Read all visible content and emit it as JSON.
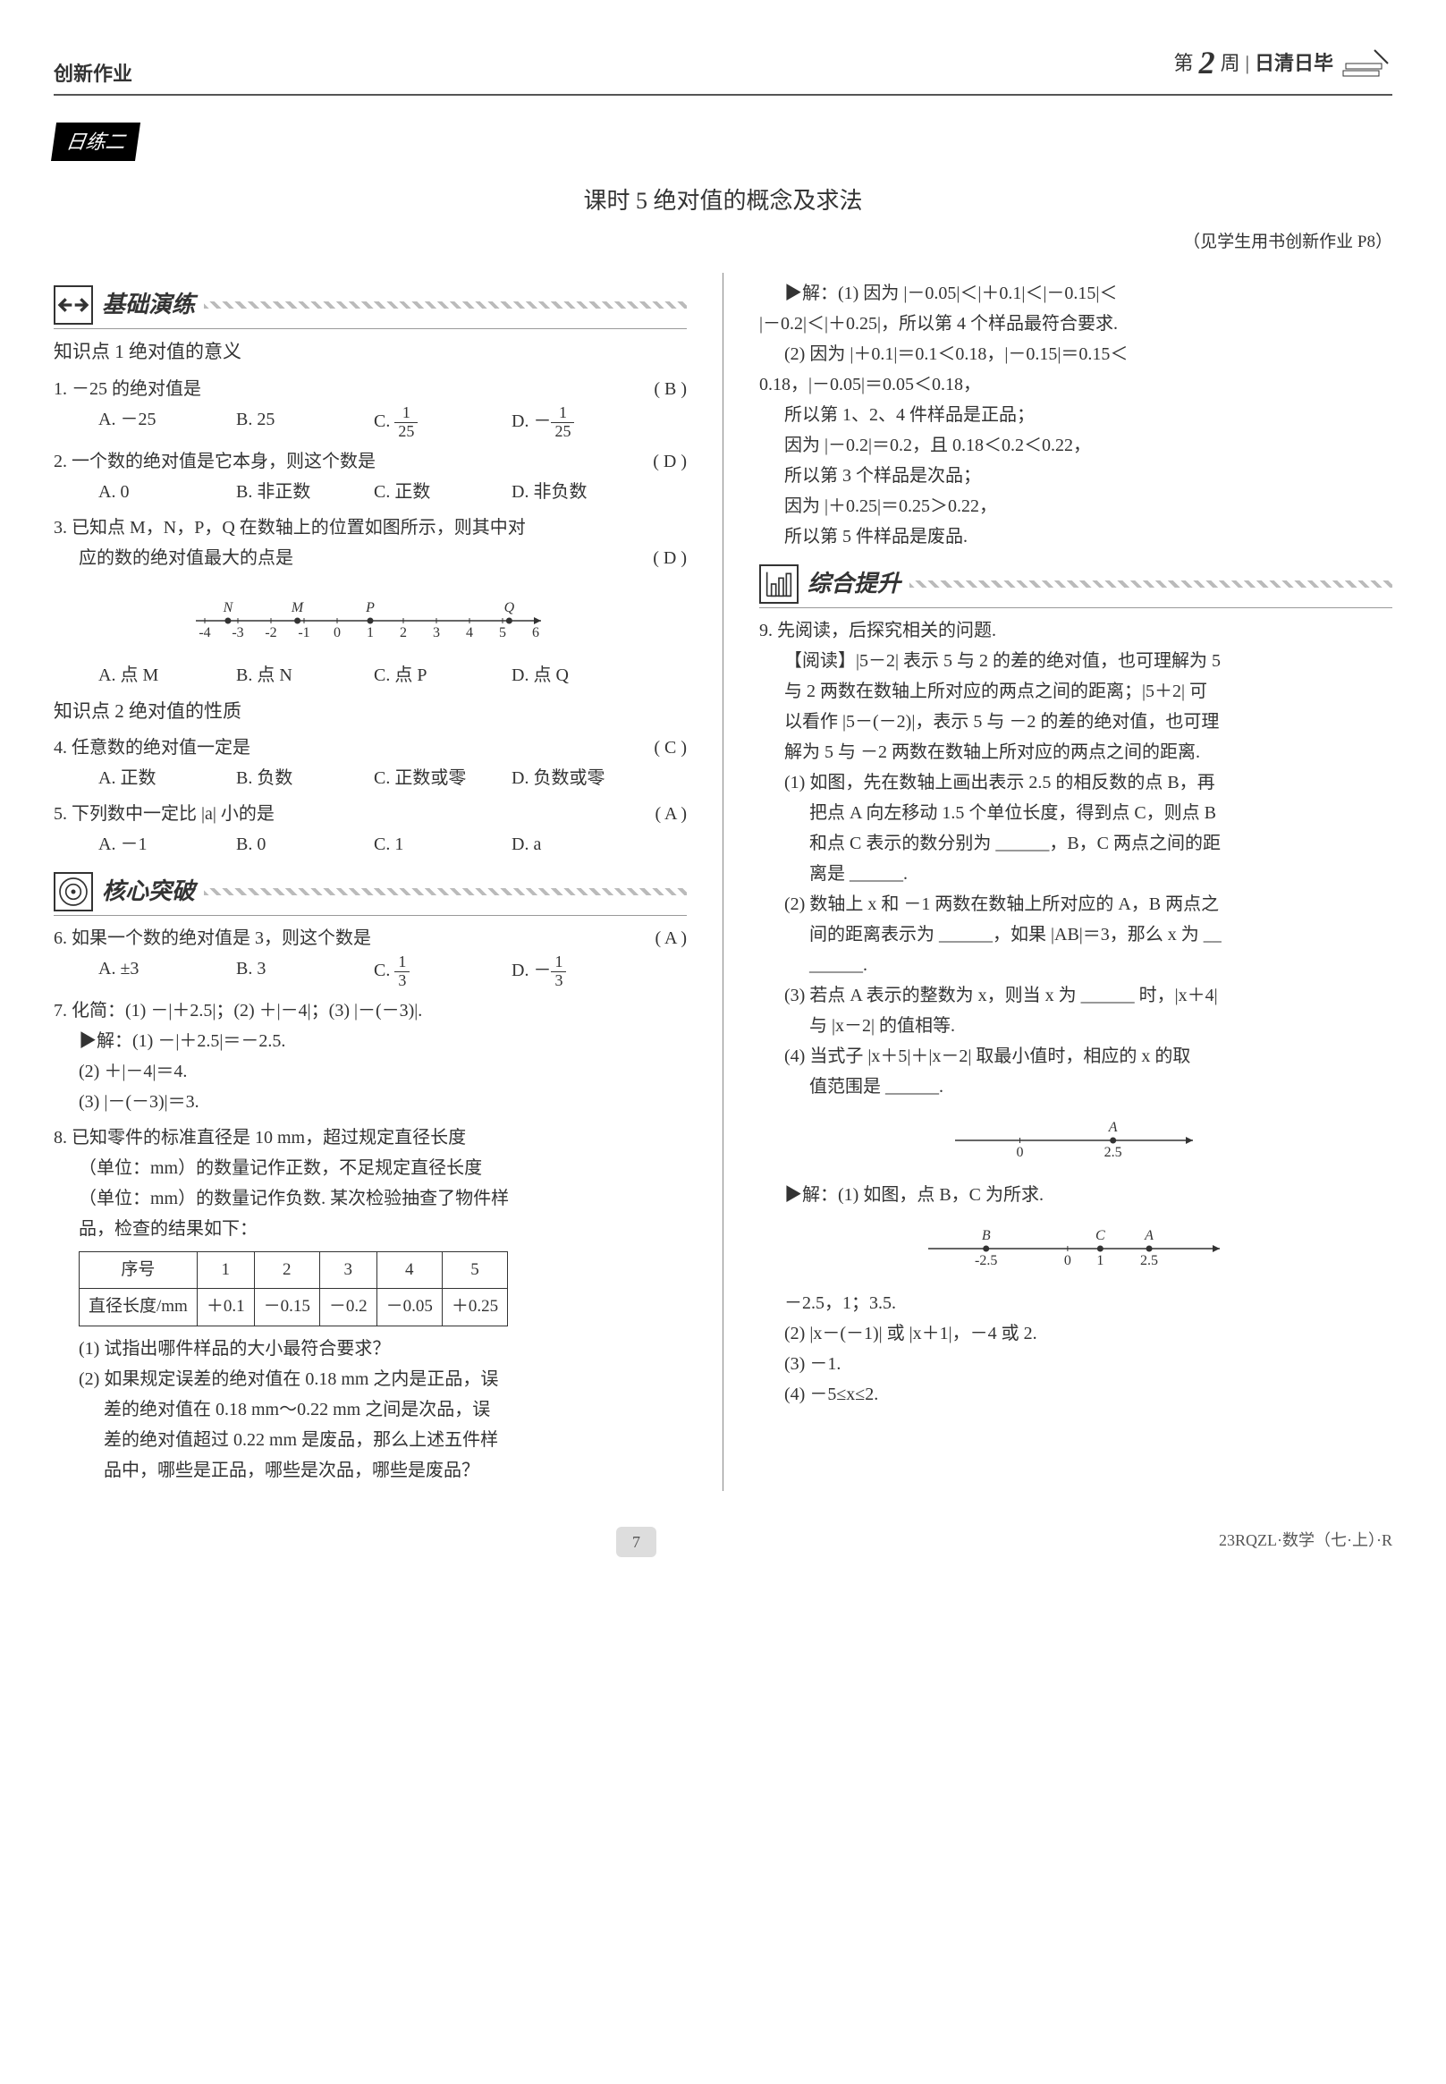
{
  "header": {
    "left": "创新作业",
    "week_prefix": "第",
    "week_num": "2",
    "week_suffix": "周",
    "divider": "|",
    "brand": "日清日毕"
  },
  "badge": "日练二",
  "lesson_title": "课时 5  绝对值的概念及求法",
  "title_note": "（见学生用书创新作业 P8）",
  "sections": {
    "basic": {
      "title": "基础演练"
    },
    "core": {
      "title": "核心突破"
    },
    "comp": {
      "title": "综合提升"
    }
  },
  "kpt1": "知识点 1  绝对值的意义",
  "q1": {
    "stem": "1. －25 的绝对值是",
    "ans": "( B )",
    "opt_a": "A. －25",
    "opt_b": "B. 25",
    "opt_c_pre": "C. ",
    "opt_c_num": "1",
    "opt_c_den": "25",
    "opt_d_pre": "D. －",
    "opt_d_num": "1",
    "opt_d_den": "25"
  },
  "q2": {
    "stem": "2. 一个数的绝对值是它本身，则这个数是",
    "ans": "( D )",
    "opt_a": "A. 0",
    "opt_b": "B. 非正数",
    "opt_c": "C. 正数",
    "opt_d": "D. 非负数"
  },
  "q3": {
    "stem1": "3. 已知点 M，N，P，Q 在数轴上的位置如图所示，则其中对",
    "stem2": "应的数的绝对值最大的点是",
    "ans": "( D )",
    "opt_a": "A. 点 M",
    "opt_b": "B. 点 N",
    "opt_c": "C. 点 P",
    "opt_d": "D. 点 Q",
    "numline": {
      "min": -4,
      "max": 6,
      "ticks": [
        "-4",
        "-3",
        "-2",
        "-1",
        "0",
        "1",
        "2",
        "3",
        "4",
        "5",
        "6"
      ],
      "points": [
        {
          "label": "N",
          "x": -3.3
        },
        {
          "label": "M",
          "x": -1.2
        },
        {
          "label": "P",
          "x": 1
        },
        {
          "label": "Q",
          "x": 5.2
        }
      ]
    }
  },
  "kpt2": "知识点 2  绝对值的性质",
  "q4": {
    "stem": "4. 任意数的绝对值一定是",
    "ans": "( C )",
    "opt_a": "A. 正数",
    "opt_b": "B. 负数",
    "opt_c": "C. 正数或零",
    "opt_d": "D. 负数或零"
  },
  "q5": {
    "stem": "5. 下列数中一定比 |a| 小的是",
    "ans": "( A )",
    "opt_a": "A. －1",
    "opt_b": "B. 0",
    "opt_c": "C. 1",
    "opt_d": "D. a"
  },
  "q6": {
    "stem": "6. 如果一个数的绝对值是 3，则这个数是",
    "ans": "( A )",
    "opt_a": "A. ±3",
    "opt_b": "B. 3",
    "opt_c_pre": "C. ",
    "opt_c_num": "1",
    "opt_c_den": "3",
    "opt_d_pre": "D. －",
    "opt_d_num": "1",
    "opt_d_den": "3"
  },
  "q7": {
    "stem": "7. 化简：(1) －|＋2.5|；(2) ＋|－4|；(3) |－(－3)|.",
    "sol_label": "▶解：",
    "s1": "(1) －|＋2.5|＝－2.5.",
    "s2": "(2) ＋|－4|＝4.",
    "s3": "(3) |－(－3)|＝3."
  },
  "q8": {
    "l1": "8. 已知零件的标准直径是 10 mm，超过规定直径长度",
    "l2": "（单位：mm）的数量记作正数，不足规定直径长度",
    "l3": "（单位：mm）的数量记作负数. 某次检验抽查了物件样",
    "l4": "品，检查的结果如下：",
    "table": {
      "r1": [
        "序号",
        "1",
        "2",
        "3",
        "4",
        "5"
      ],
      "r2": [
        "直径长度/mm",
        "＋0.1",
        "－0.15",
        "－0.2",
        "－0.05",
        "＋0.25"
      ]
    },
    "sub1": "(1) 试指出哪件样品的大小最符合要求？",
    "sub2a": "(2) 如果规定误差的绝对值在 0.18 mm 之内是正品，误",
    "sub2b": "差的绝对值在 0.18 mm～0.22 mm 之间是次品，误",
    "sub2c": "差的绝对值超过 0.22 mm 是废品，那么上述五件样",
    "sub2d": "品中，哪些是正品，哪些是次品，哪些是废品？"
  },
  "q8sol": {
    "label": "▶解：",
    "s1a": "(1) 因为 |－0.05|＜|＋0.1|＜|－0.15|＜",
    "s1b": "|－0.2|＜|＋0.25|，所以第 4 个样品最符合要求.",
    "s2a": "(2) 因为 |＋0.1|＝0.1＜0.18，|－0.15|＝0.15＜",
    "s2b": "0.18，|－0.05|＝0.05＜0.18，",
    "s2c": "所以第 1、2、4 件样品是正品；",
    "s2d": "因为 |－0.2|＝0.2，且 0.18＜0.2＜0.22，",
    "s2e": "所以第 3 个样品是次品；",
    "s2f": "因为 |＋0.25|＝0.25＞0.22，",
    "s2g": "所以第 5 件样品是废品."
  },
  "q9": {
    "stem": "9. 先阅读，后探究相关的问题.",
    "read1": "【阅读】|5－2| 表示 5 与 2 的差的绝对值，也可理解为 5",
    "read2": "与 2 两数在数轴上所对应的两点之间的距离；|5＋2| 可",
    "read3": "以看作 |5－(－2)|，表示 5 与 －2 的差的绝对值，也可理",
    "read4": "解为 5 与 －2 两数在数轴上所对应的两点之间的距离.",
    "p1a": "(1) 如图，先在数轴上画出表示 2.5 的相反数的点 B，再",
    "p1b": "把点 A 向左移动 1.5 个单位长度，得到点 C，则点 B",
    "p1c": "和点 C 表示的数分别为 ______，B，C 两点之间的距",
    "p1d": "离是 ______.",
    "p2a": "(2) 数轴上 x 和 －1 两数在数轴上所对应的 A，B 两点之",
    "p2b": "间的距离表示为 ______，如果 |AB|＝3，那么 x 为 __",
    "p2c": "______.",
    "p3a": "(3) 若点 A 表示的整数为 x，则当 x 为 ______ 时，|x＋4|",
    "p3b": "与 |x－2| 的值相等.",
    "p4a": "(4) 当式子 |x＋5|＋|x－2| 取最小值时，相应的 x 的取",
    "p4b": "值范围是 ______.",
    "numline1": {
      "ticks": [
        "0",
        "2.5"
      ],
      "tick_x": [
        0,
        2.5
      ],
      "points": [
        {
          "label": "A",
          "x": 2.5
        }
      ],
      "min": -1.5,
      "max": 4.5
    },
    "sol_label": "▶解：",
    "sol1_text": "(1) 如图，点 B，C 为所求.",
    "numline2": {
      "ticks": [
        "-2.5",
        "0",
        "1",
        "2.5"
      ],
      "tick_x": [
        -2.5,
        0,
        1,
        2.5
      ],
      "points": [
        {
          "label": "B",
          "x": -2.5
        },
        {
          "label": "C",
          "x": 1
        },
        {
          "label": "A",
          "x": 2.5
        }
      ],
      "min": -4,
      "max": 4.5
    },
    "sol1_ans": "－2.5，1；3.5.",
    "sol2": "(2) |x－(－1)| 或 |x＋1|，－4 或 2.",
    "sol3": "(3) －1.",
    "sol4": "(4) －5≤x≤2."
  },
  "footer": {
    "page": "7",
    "code": "23RQZL·数学（七·上）·R"
  },
  "numline_style": {
    "stroke": "#333333",
    "stroke_width": 1.5,
    "tick_len": 6,
    "font_size": 16,
    "point_radius": 3.5
  }
}
